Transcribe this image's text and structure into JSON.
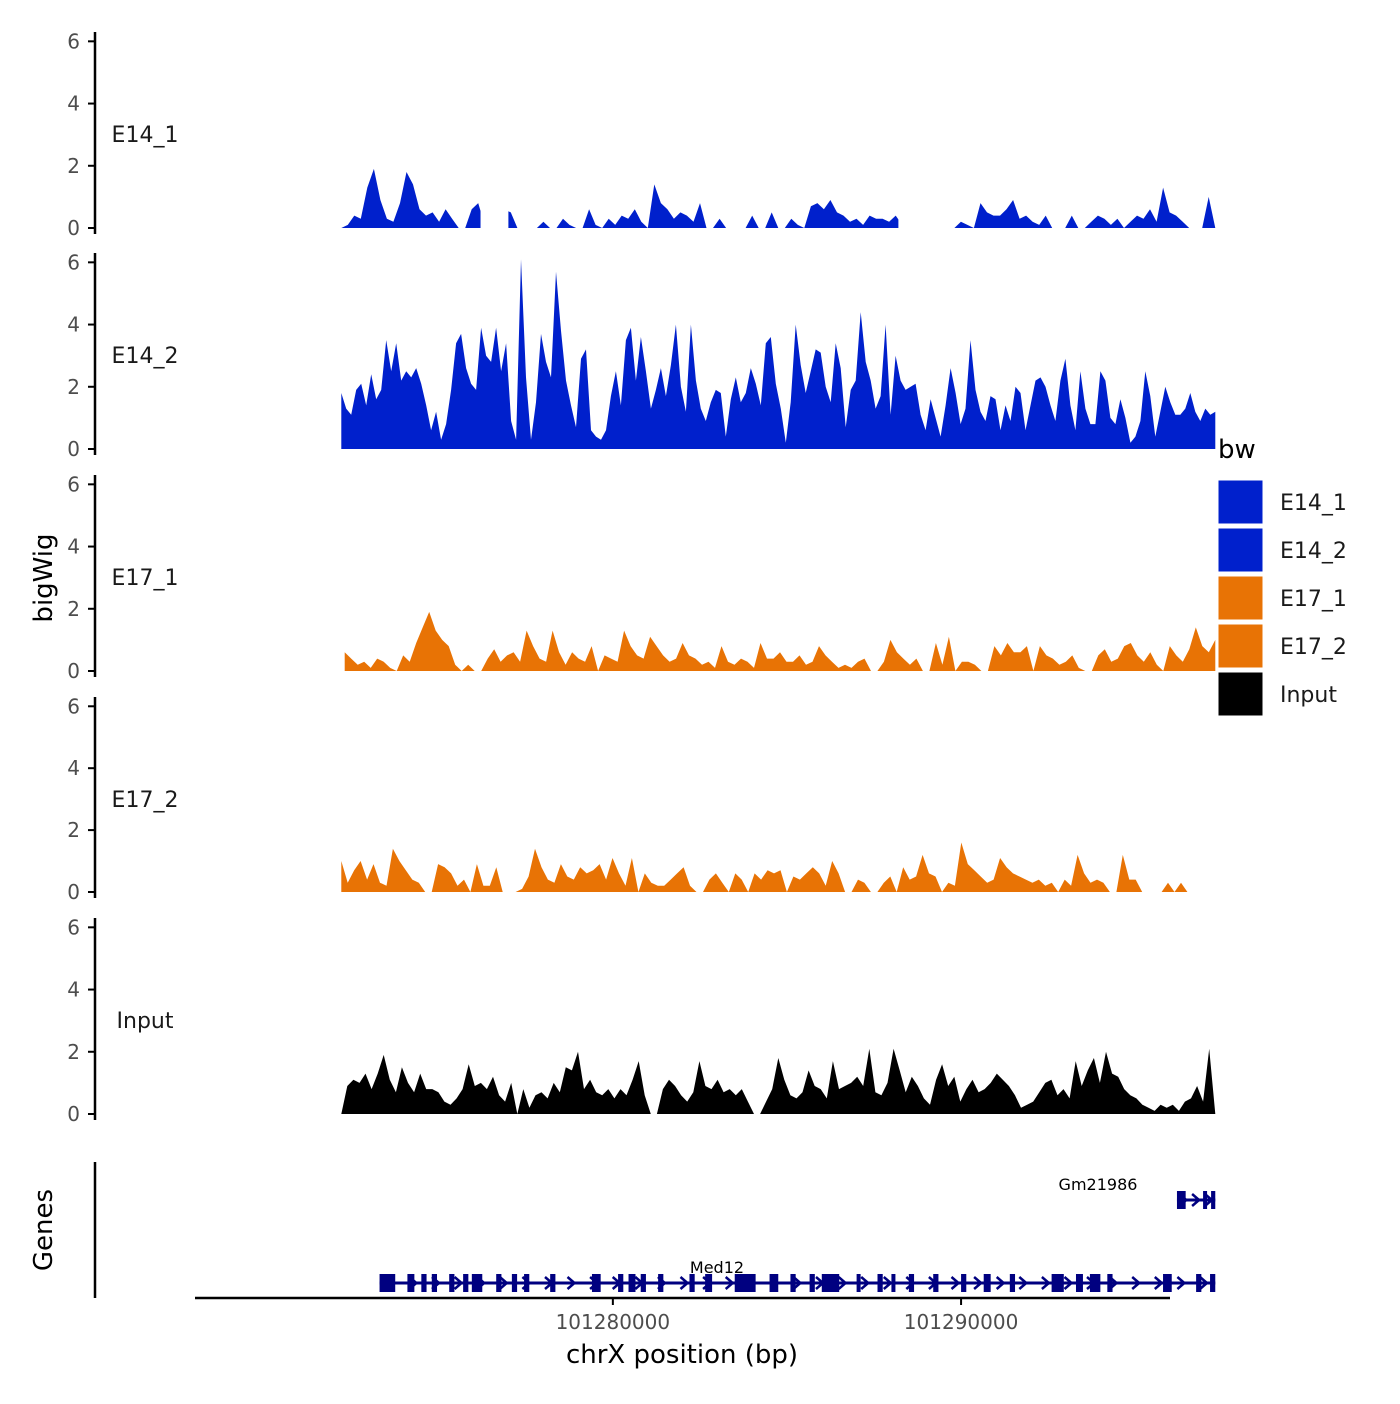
{
  "chart_data": {
    "type": "area",
    "chromosome": "chrX",
    "xlabel": "chrX position (bp)",
    "ylabel": "bigWig",
    "genes_label": "Genes",
    "xlim": [
      101268000,
      101296000
    ],
    "ylim": [
      0,
      6.3
    ],
    "y_ticks": [
      "0",
      "2",
      "4",
      "6"
    ],
    "x_ticks": [
      {
        "value": 101280000,
        "label": "101280000"
      },
      {
        "value": 101290000,
        "label": "101290000"
      }
    ],
    "legend": {
      "title": "bw",
      "position": "right",
      "entries": [
        {
          "label": "E14_1",
          "color": "#0020cc"
        },
        {
          "label": "E14_2",
          "color": "#0020cc"
        },
        {
          "label": "E17_1",
          "color": "#e87305"
        },
        {
          "label": "E17_2",
          "color": "#e87305"
        },
        {
          "label": "Input",
          "color": "#000000"
        }
      ]
    },
    "series": [
      {
        "name": "E14_1",
        "color": "#0020cc",
        "x_start": 101272200,
        "x_end": 101297300,
        "values": [
          0,
          0.1,
          0.4,
          0.3,
          1.3,
          1.9,
          0.9,
          0.3,
          0.2,
          0.8,
          1.8,
          1.4,
          0.6,
          0.4,
          0.5,
          0.2,
          0.6,
          0.3,
          0,
          0,
          0.6,
          0.8,
          0.1,
          1.6,
          0.5,
          0.6,
          0.5,
          0,
          0,
          0,
          0,
          0.2,
          0,
          0,
          0.3,
          0.1,
          0,
          0,
          0.6,
          0.1,
          0,
          0.3,
          0.1,
          0.4,
          0.3,
          0.6,
          0.2,
          0,
          1.4,
          0.8,
          0.6,
          0.3,
          0.5,
          0.4,
          0.2,
          0.8,
          0,
          0,
          0.3,
          0,
          0,
          0,
          0,
          0.4,
          0,
          0,
          0.5,
          0,
          0,
          0.3,
          0.1,
          0,
          0.7,
          0.8,
          0.6,
          0.9,
          0.5,
          0.4,
          0.2,
          0.3,
          0.1,
          0.4,
          0.3,
          0.3,
          0.2,
          0.4,
          0.1,
          0,
          0.6,
          0.3,
          0,
          0,
          0,
          0,
          0,
          0.2,
          0.1,
          0,
          0.8,
          0.5,
          0.4,
          0.4,
          0.6,
          0.9,
          0.3,
          0.4,
          0.2,
          0.1,
          0.4,
          0,
          0,
          0,
          0.4,
          0,
          0,
          0.2,
          0.4,
          0.3,
          0.1,
          0.3,
          0,
          0.2,
          0.4,
          0.3,
          0.6,
          0.2,
          1.3,
          0.5,
          0.4,
          0.2,
          0,
          0,
          0,
          1.0,
          0
        ],
        "gaps": [
          [
            101276200,
            101277000
          ],
          [
            101288200,
            101289200
          ]
        ]
      },
      {
        "name": "E14_2",
        "color": "#0020cc",
        "x_start": 101272200,
        "x_end": 101297300,
        "values": [
          1.8,
          1.3,
          1.1,
          1.9,
          2.1,
          1.4,
          2.4,
          1.6,
          1.9,
          3.5,
          2.5,
          3.4,
          2.2,
          2.5,
          2.3,
          2.6,
          2.1,
          1.4,
          0.6,
          1.2,
          0.3,
          0.8,
          1.9,
          3.4,
          3.7,
          2.6,
          2.1,
          1.9,
          3.9,
          3.0,
          2.8,
          3.9,
          2.5,
          3.4,
          0.9,
          0.3,
          6.1,
          2.3,
          0.3,
          1.5,
          3.7,
          2.8,
          2.3,
          5.7,
          3.8,
          2.2,
          1.4,
          0.7,
          2.9,
          3.2,
          0.6,
          0.4,
          0.3,
          0.6,
          1.7,
          2.5,
          1.4,
          3.5,
          3.9,
          2.2,
          3.6,
          2.5,
          1.3,
          1.9,
          2.6,
          1.7,
          2.7,
          4.0,
          2.0,
          1.2,
          4.0,
          2.2,
          1.3,
          0.9,
          1.5,
          1.9,
          1.8,
          0.4,
          1.6,
          2.3,
          1.5,
          1.8,
          2.6,
          2.1,
          1.4,
          3.4,
          3.6,
          2.1,
          1.3,
          0.2,
          1.5,
          4.0,
          2.7,
          1.8,
          2.5,
          3.2,
          3.1,
          2.0,
          1.5,
          3.4,
          2.6,
          0.7,
          1.9,
          2.2,
          4.4,
          2.8,
          2.2,
          1.3,
          1.7,
          4.0,
          1.1,
          3.0,
          2.2,
          1.9,
          2.0,
          2.1,
          1.1,
          0.6,
          1.6,
          1.0,
          0.4,
          1.4,
          2.6,
          1.8,
          0.8,
          1.3,
          3.5,
          1.9,
          1.2,
          0.9,
          1.7,
          1.6,
          0.6,
          1.4,
          0.9,
          2.0,
          1.8,
          0.6,
          1.4,
          2.2,
          2.3,
          2.0,
          1.4,
          0.9,
          2.2,
          2.9,
          1.4,
          0.6,
          2.5,
          1.3,
          0.8,
          0.8,
          2.5,
          2.2,
          1.0,
          0.8,
          1.6,
          1.0,
          0.2,
          0.4,
          0.9,
          2.5,
          1.7,
          0.4,
          1.2,
          2.0,
          1.5,
          1.1,
          1.1,
          1.3,
          1.8,
          1.2,
          0.9,
          1.3,
          1.1,
          1.2
        ]
      },
      {
        "name": "E17_1",
        "color": "#e87305",
        "x_start": 101272300,
        "x_end": 101297300,
        "values": [
          0.6,
          0.4,
          0.2,
          0.3,
          0.1,
          0.4,
          0.3,
          0.1,
          0,
          0.5,
          0.3,
          0.9,
          1.4,
          1.9,
          1.3,
          1.0,
          0.8,
          0.2,
          0,
          0.2,
          0,
          0,
          0.4,
          0.7,
          0.3,
          0.5,
          0.6,
          0.3,
          1.3,
          0.8,
          0.4,
          0.3,
          1.3,
          0.6,
          0.2,
          0.6,
          0.4,
          0.3,
          0.8,
          0,
          0.5,
          0.4,
          0.3,
          1.3,
          0.8,
          0.5,
          0.4,
          1.1,
          0.8,
          0.5,
          0.3,
          0.4,
          0.9,
          0.5,
          0.4,
          0.2,
          0.3,
          0.1,
          0.8,
          0.3,
          0.2,
          0.4,
          0.3,
          0.1,
          0.9,
          0.4,
          0.4,
          0.6,
          0.3,
          0.3,
          0.5,
          0.2,
          0.3,
          0.8,
          0.5,
          0.3,
          0.1,
          0.2,
          0.1,
          0.3,
          0.4,
          0,
          0,
          0.3,
          1.0,
          0.6,
          0.4,
          0.2,
          0.4,
          0,
          0,
          0.9,
          0.2,
          1.1,
          0,
          0.3,
          0.3,
          0.2,
          0,
          0,
          0.8,
          0.5,
          0.9,
          0.6,
          0.6,
          0.8,
          0,
          0.8,
          0.5,
          0.4,
          0.2,
          0.3,
          0.5,
          0.1,
          0,
          0,
          0.5,
          0.7,
          0.3,
          0.4,
          0.8,
          0.9,
          0.5,
          0.3,
          0.6,
          0.2,
          0,
          0.8,
          0.5,
          0.3,
          0.7,
          1.4,
          0.8,
          0.6,
          1.0
        ]
      },
      {
        "name": "E17_2",
        "color": "#e87305",
        "x_start": 101272200,
        "x_end": 101296500,
        "values": [
          1.0,
          0.3,
          0.7,
          1.0,
          0.4,
          0.9,
          0.3,
          0.2,
          1.4,
          1.0,
          0.7,
          0.4,
          0.3,
          0,
          0,
          0.9,
          0.8,
          0.6,
          0.2,
          0.4,
          0,
          0.9,
          0.2,
          0.2,
          0.8,
          0,
          0,
          0,
          0.1,
          0.5,
          1.4,
          0.8,
          0.4,
          0.3,
          0.9,
          0.5,
          0.4,
          0.8,
          0.6,
          0.7,
          0.9,
          0.4,
          1.1,
          0.6,
          0.2,
          1.1,
          0,
          0.6,
          0.3,
          0.2,
          0.2,
          0.4,
          0.6,
          0.8,
          0.2,
          0,
          0,
          0.4,
          0.6,
          0.3,
          0,
          0.6,
          0.4,
          0,
          0.6,
          0.4,
          0.7,
          0.6,
          0.7,
          0,
          0.5,
          0.4,
          0.6,
          0.8,
          0.6,
          0.2,
          1.0,
          0.6,
          0,
          0,
          0.4,
          0.3,
          0,
          0,
          0.3,
          0.5,
          0,
          0.8,
          0.4,
          0.5,
          1.2,
          0.6,
          0.5,
          0,
          0.3,
          0.2,
          1.6,
          0.9,
          0.7,
          0.5,
          0.3,
          0.4,
          1.1,
          0.8,
          0.6,
          0.5,
          0.4,
          0.3,
          0.4,
          0.2,
          0.3,
          0,
          0.4,
          0.2,
          1.2,
          0.6,
          0.3,
          0.4,
          0.3,
          0,
          0,
          1.2,
          0.4,
          0.4,
          0,
          0,
          0,
          0,
          0.3,
          0,
          0.3,
          0
        ]
      },
      {
        "name": "Input",
        "color": "#000000",
        "x_start": 101272200,
        "x_end": 101297300,
        "values": [
          0,
          0.9,
          1.1,
          1.0,
          1.3,
          0.8,
          1.3,
          1.9,
          1.1,
          0.7,
          1.5,
          1.0,
          0.7,
          1.3,
          0.8,
          0.8,
          0.7,
          0.4,
          0.3,
          0.5,
          0.8,
          1.6,
          0.9,
          1.0,
          0.8,
          1.2,
          0.6,
          0.4,
          1.0,
          0,
          0.8,
          0.2,
          0.6,
          0.7,
          0.5,
          1.0,
          0.7,
          1.5,
          1.4,
          2.0,
          0.8,
          1.1,
          0.7,
          0.6,
          0.8,
          0.5,
          0.8,
          0.6,
          1.1,
          1.7,
          0.6,
          0,
          0,
          0.8,
          1.1,
          0.9,
          0.6,
          0.4,
          0.7,
          1.7,
          0.9,
          0.8,
          1.1,
          0.7,
          0.8,
          0.6,
          0.8,
          0.4,
          0,
          0,
          0.4,
          0.8,
          1.8,
          1.1,
          0.6,
          0.5,
          0.7,
          1.4,
          0.9,
          0.8,
          0.5,
          1.7,
          0.8,
          0.9,
          1.0,
          1.2,
          0.9,
          2.1,
          0.7,
          0.6,
          1.0,
          2.1,
          1.4,
          0.7,
          1.2,
          0.9,
          0.5,
          0.3,
          1.1,
          1.6,
          0.9,
          1.2,
          0.4,
          0.8,
          1.1,
          0.7,
          0.8,
          1.0,
          1.3,
          1.1,
          0.9,
          0.6,
          0.2,
          0.3,
          0.4,
          0.7,
          1.0,
          1.1,
          0.6,
          0.8,
          0.5,
          1.7,
          0.9,
          1.4,
          1.8,
          1.0,
          2.0,
          1.3,
          1.2,
          0.8,
          0.6,
          0.5,
          0.3,
          0.2,
          0.1,
          0.3,
          0.2,
          0.3,
          0.1,
          0.4,
          0.5,
          0.9,
          0.4,
          2.1,
          0
        ]
      }
    ],
    "genes": [
      {
        "name": "Gm21986",
        "strand": "+",
        "start": 101296200,
        "end": 101297300,
        "exons": [
          [
            101296200,
            101296450
          ],
          [
            101296950,
            101297050
          ],
          [
            101297180,
            101297300
          ]
        ]
      },
      {
        "name": "Med12",
        "strand": "+",
        "start": 101273300,
        "end": 101297300,
        "exons": [
          [
            101273300,
            101273750
          ],
          [
            101274100,
            101274300
          ],
          [
            101274500,
            101274650
          ],
          [
            101274800,
            101274950
          ],
          [
            101275300,
            101275450
          ],
          [
            101275700,
            101275850
          ],
          [
            101275950,
            101276250
          ],
          [
            101276650,
            101276800
          ],
          [
            101277100,
            101277250
          ],
          [
            101277450,
            101277600
          ],
          [
            101278200,
            101278350
          ],
          [
            101279400,
            101279650
          ],
          [
            101280150,
            101280300
          ],
          [
            101280450,
            101280650
          ],
          [
            101280800,
            101280950
          ],
          [
            101281300,
            101281450
          ],
          [
            101282200,
            101282350
          ],
          [
            101282650,
            101282850
          ],
          [
            101283500,
            101284100
          ],
          [
            101284500,
            101284750
          ],
          [
            101285100,
            101285250
          ],
          [
            101285650,
            101285800
          ],
          [
            101286000,
            101286500
          ],
          [
            101287000,
            101287100
          ],
          [
            101287600,
            101287750
          ],
          [
            101288000,
            101288100
          ],
          [
            101288500,
            101288650
          ],
          [
            101289200,
            101289350
          ],
          [
            101290000,
            101290150
          ],
          [
            101290650,
            101290850
          ],
          [
            101291400,
            101291550
          ],
          [
            101292600,
            101292950
          ],
          [
            101293300,
            101293500
          ],
          [
            101293700,
            101294000
          ],
          [
            101294200,
            101294350
          ],
          [
            101295800,
            101296050
          ],
          [
            101296750,
            101296900
          ],
          [
            101297150,
            101297300
          ]
        ]
      }
    ]
  }
}
